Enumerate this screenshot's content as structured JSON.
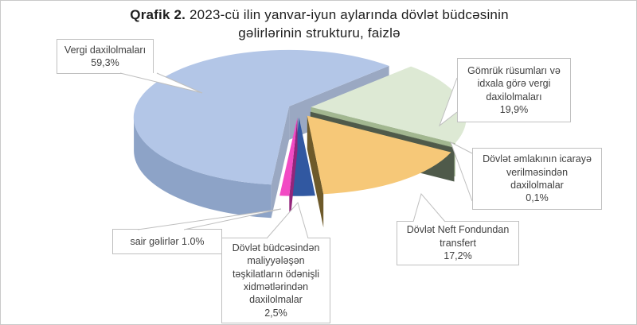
{
  "header": {
    "title_prefix": "Qrafik 2.",
    "title_line1_rest": " 2023-cü ilin yanvar-iyun aylarında dövlət büdcəsinin",
    "title_line2": "gəlirlərinin strukturu, faizlə"
  },
  "chart_data": {
    "type": "pie",
    "is_3d": true,
    "exploded": true,
    "start_angle_deg": 186.6,
    "title": "Qrafik 2. 2023-cü ilin yanvar-iyun aylarında dövlət büdcəsinin gəlirlərinin strukturu, faizlə",
    "unit": "percent",
    "legend_position": "none",
    "slices": [
      {
        "id": "vergi",
        "label": "Vergi daxilolmaları",
        "value": 59.3,
        "pct_label": "59,3%",
        "color_top": "#b3c6e7",
        "color_side": "#8da3c7",
        "color_wall": "#9aa8c2",
        "callout": "Vergi daxilolmaları\n59,3%"
      },
      {
        "id": "gomruk",
        "label": "Gömrük rüsumları və idxala görə vergi daxilolmaları",
        "value": 19.9,
        "pct_label": "19,9%",
        "color_top": "#dde9d4",
        "color_side": "#a9bd97",
        "color_wall": "#a2b790",
        "callout": "Gömrük rüsumları və\nidxala görə vergi\ndaxilolmaları\n19,9%"
      },
      {
        "id": "emlak",
        "label": "Dövlət əmlakının icarayə verilməsindən daxilolmalar",
        "value": 0.1,
        "pct_label": "0,1%",
        "color_top": "#4f5a4a",
        "color_side": "#49543f",
        "color_wall": "#4f5a4a",
        "callout": "Dövlət əmlakının icarayə\nverilməsindən\ndaxilolmalar\n0,1%"
      },
      {
        "id": "neft",
        "label": "Dövlət Neft Fondundan transfert",
        "value": 17.2,
        "pct_label": "17,2%",
        "color_top": "#f6c878",
        "color_side": "#77622e",
        "color_wall": "#6e5a2a",
        "callout": "Dövlət Neft Fondundan\ntransfert\n17,2%"
      },
      {
        "id": "budce",
        "label": "Dövlət büdcəsindən maliyyələşən təşkilatların ödənişli xidmətlərindən daxilolmalar",
        "value": 2.5,
        "pct_label": "2,5%",
        "color_top": "#3158a1",
        "color_side": "#1f3864",
        "color_wall": "#1f3864",
        "callout": "Dövlət büdcəsindən\nmaliyyələşən\ntəşkilatların ödənişli\nxidmətlərindən\ndaxilolmalar\n2,5%"
      },
      {
        "id": "sair",
        "label": "sair gəlirlər",
        "value": 1.0,
        "pct_label": "1.0%",
        "color_top": "#f24ac4",
        "color_side": "#a52c8a",
        "color_wall": "#93257b",
        "callout": "sair gəlirlər 1.0%"
      }
    ]
  }
}
